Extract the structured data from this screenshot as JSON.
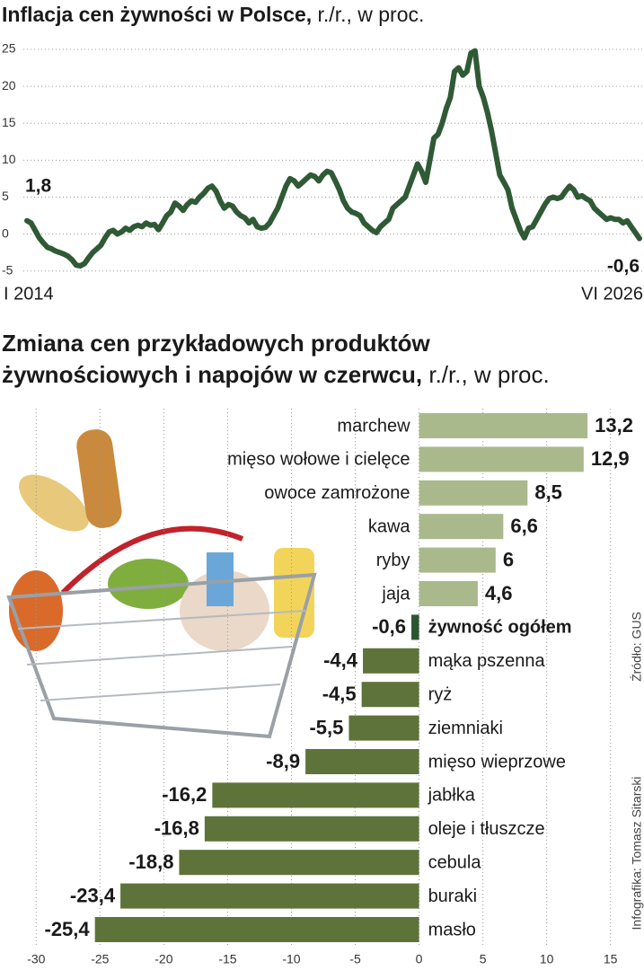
{
  "chart_data": [
    {
      "type": "line",
      "title": "Inflacja cen żywności w Polsce,",
      "title_unit": "r./r., w proc.",
      "categories": [
        "I 2014",
        null,
        null,
        null,
        null,
        null,
        null,
        null,
        null,
        null,
        null,
        null,
        null,
        null,
        null,
        null,
        null,
        null,
        null,
        null,
        null,
        null,
        null,
        null,
        null,
        null,
        null,
        null,
        null,
        null,
        null,
        null,
        null,
        null,
        null,
        null,
        null,
        null,
        null,
        null,
        null,
        null,
        null,
        null,
        null,
        null,
        null,
        null,
        null,
        null,
        null,
        null,
        null,
        null,
        null,
        null,
        null,
        null,
        null,
        null,
        null,
        null,
        null,
        null,
        null,
        null,
        null,
        null,
        null,
        null,
        null,
        null,
        null,
        null,
        null,
        null,
        null,
        null,
        null,
        null,
        null,
        null,
        null,
        null,
        null,
        null,
        null,
        null,
        null,
        null,
        null,
        null,
        null,
        null,
        null,
        null,
        null,
        null,
        null,
        null,
        null,
        null,
        null,
        null,
        null,
        null,
        null,
        null,
        null,
        null,
        null,
        null,
        null,
        null,
        null,
        null,
        null,
        null,
        null,
        null,
        null,
        null,
        null,
        null,
        null,
        null,
        null,
        null,
        null,
        null,
        null,
        null,
        null,
        null,
        null,
        null,
        null,
        null,
        null,
        null,
        null,
        null,
        null,
        null,
        null,
        null,
        null,
        null,
        null,
        "VI 2026"
      ],
      "values": [
        1.8,
        1.5,
        0.5,
        -0.5,
        -1.2,
        -1.8,
        -2.0,
        -2.3,
        -2.5,
        -2.7,
        -3.0,
        -3.5,
        -4.2,
        -4.3,
        -4.0,
        -3.2,
        -2.5,
        -2.0,
        -1.5,
        -0.5,
        0.3,
        0.5,
        0.0,
        0.3,
        0.8,
        0.5,
        1.0,
        1.2,
        1.0,
        1.5,
        1.2,
        1.3,
        0.6,
        1.5,
        2.5,
        3.0,
        4.2,
        3.8,
        3.2,
        4.0,
        4.5,
        4.3,
        5.0,
        5.5,
        6.2,
        6.5,
        5.8,
        4.5,
        3.5,
        4.0,
        3.8,
        3.0,
        2.5,
        2.2,
        1.5,
        2.0,
        1.0,
        0.8,
        0.9,
        1.5,
        2.5,
        3.5,
        5.0,
        6.5,
        7.5,
        7.2,
        6.5,
        7.0,
        7.5,
        8.0,
        7.8,
        7.2,
        8.0,
        8.5,
        8.3,
        7.2,
        6.0,
        4.5,
        3.5,
        3.0,
        2.8,
        2.5,
        1.5,
        1.0,
        0.5,
        0.2,
        1.0,
        1.5,
        2.0,
        3.5,
        4.0,
        4.5,
        5.0,
        6.5,
        8.0,
        9.5,
        8.5,
        7.0,
        10.0,
        13.0,
        13.5,
        15.0,
        17.0,
        18.5,
        22.0,
        22.5,
        21.5,
        22.0,
        24.5,
        24.8,
        20.0,
        18.5,
        16.5,
        14.0,
        11.0,
        8.0,
        7.0,
        6.0,
        3.5,
        2.0,
        0.5,
        -0.5,
        0.8,
        1.0,
        2.0,
        3.0,
        4.0,
        4.8,
        5.0,
        4.8,
        5.0,
        5.8,
        6.5,
        6.0,
        5.0,
        5.2,
        4.8,
        4.5,
        3.5,
        3.0,
        2.5,
        2.0,
        2.2,
        2.0,
        2.0,
        1.5,
        1.8,
        1.0,
        0.2,
        -0.6
      ],
      "value_labels": [
        "1,8",
        null,
        null,
        null,
        null,
        null,
        null,
        null,
        null,
        null,
        null,
        null,
        null,
        null,
        null,
        null,
        null,
        null,
        null,
        null,
        null,
        null,
        null,
        null,
        null,
        null,
        null,
        null,
        null,
        null,
        null,
        null,
        null,
        null,
        null,
        null,
        null,
        null,
        null,
        null,
        null,
        null,
        null,
        null,
        null,
        null,
        null,
        null,
        null,
        null,
        null,
        null,
        null,
        null,
        null,
        null,
        null,
        null,
        null,
        null,
        null,
        null,
        null,
        null,
        null,
        null,
        null,
        null,
        null,
        null,
        null,
        null,
        null,
        null,
        null,
        null,
        null,
        null,
        null,
        null,
        null,
        null,
        null,
        null,
        null,
        null,
        null,
        null,
        null,
        null,
        null,
        null,
        null,
        null,
        null,
        null,
        null,
        null,
        null,
        null,
        null,
        null,
        null,
        null,
        null,
        null,
        null,
        null,
        null,
        null,
        null,
        null,
        null,
        null,
        null,
        null,
        null,
        null,
        null,
        null,
        null,
        null,
        null,
        null,
        null,
        null,
        null,
        null,
        null,
        null,
        null,
        null,
        null,
        null,
        null,
        null,
        null,
        null,
        null,
        null,
        null,
        null,
        null,
        null,
        null,
        null,
        null,
        null,
        null,
        "-0,6"
      ],
      "color": "#2f5a35",
      "ylim": [
        -6,
        27
      ],
      "yticks": [
        -5,
        0,
        5,
        10,
        15,
        20,
        25
      ],
      "grid": true
    },
    {
      "type": "hbar",
      "title": [
        "Zmiana cen przykładowych produktów",
        "żywnościowych i napojów w czerwcu,"
      ],
      "title_unit": "r./r., w proc.",
      "categories": [
        "marchew",
        "mięso wołowe i cielęce",
        "owoce zamrożone",
        "kawa",
        "ryby",
        "jaja",
        "żywność ogółem",
        "mąka pszenna",
        "ryż",
        "ziemniaki",
        "mięso wieprzowe",
        "jabłka",
        "oleje i tłuszcze",
        "cebula",
        "buraki",
        "masło"
      ],
      "values": [
        13.2,
        12.9,
        8.5,
        6.6,
        6,
        4.6,
        -0.6,
        -4.4,
        -4.5,
        -5.5,
        -8.9,
        -16.2,
        -16.8,
        -18.8,
        -23.4,
        -25.4
      ],
      "value_labels": [
        "13,2",
        "12,9",
        "8,5",
        "6,6",
        "6",
        "4,6",
        "-0,6",
        "-4,4",
        "-4,5",
        "-5,5",
        "-8,9",
        "-16,2",
        "-16,8",
        "-18,8",
        "-23,4",
        "-25,4"
      ],
      "colors": [
        "#a9b98c",
        "#a9b98c",
        "#a9b98c",
        "#a9b98c",
        "#a9b98c",
        "#a9b98c",
        "#2b5530",
        "#5e7339",
        "#5e7339",
        "#5e7339",
        "#5e7339",
        "#5e7339",
        "#5e7339",
        "#5e7339",
        "#5e7339",
        "#5e7339"
      ],
      "emphasis": [
        false,
        false,
        false,
        false,
        false,
        false,
        true,
        false,
        false,
        false,
        false,
        false,
        false,
        false,
        false,
        false
      ],
      "xlim": [
        -31.5,
        16.5
      ],
      "xticks": [
        -30,
        -25,
        -20,
        -15,
        -10,
        -5,
        0,
        5,
        10,
        15
      ],
      "grid": true,
      "source": "Źródło: GUS",
      "credit": "Infografika: Tomasz Sitarski"
    }
  ]
}
